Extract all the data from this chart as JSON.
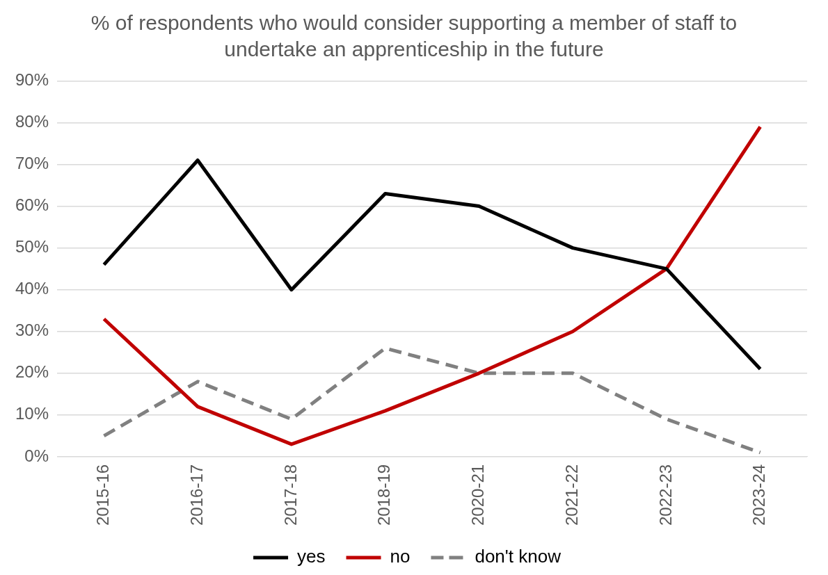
{
  "chart_data": {
    "type": "line",
    "title": "% of respondents who would consider supporting a member of staff to undertake an apprenticeship in the future",
    "categories": [
      "2015-16",
      "2016-17",
      "2017-18",
      "2018-19",
      "2020-21",
      "2021-22",
      "2022-23",
      "2023-24"
    ],
    "series": [
      {
        "name": "yes",
        "color": "#000000",
        "values": [
          46,
          71,
          40,
          63,
          60,
          50,
          45,
          21
        ]
      },
      {
        "name": "no",
        "color": "#c00000",
        "values": [
          33,
          12,
          3,
          11,
          20,
          30,
          45,
          79
        ]
      },
      {
        "name": "don't know",
        "color": "#808080",
        "line_style": "dashed",
        "values": [
          5,
          18,
          9,
          26,
          20,
          20,
          9,
          1
        ]
      }
    ],
    "ylim": [
      0,
      90
    ],
    "yticks": [
      {
        "value": 0,
        "label": "0%"
      },
      {
        "value": 10,
        "label": "10%"
      },
      {
        "value": 20,
        "label": "20%"
      },
      {
        "value": 30,
        "label": "30%"
      },
      {
        "value": 40,
        "label": "40%"
      },
      {
        "value": 50,
        "label": "50%"
      },
      {
        "value": 60,
        "label": "60%"
      },
      {
        "value": 70,
        "label": "70%"
      },
      {
        "value": 80,
        "label": "80%"
      },
      {
        "value": 90,
        "label": "90%"
      }
    ],
    "grid": "y",
    "legend": "bottom",
    "marker": "none"
  }
}
